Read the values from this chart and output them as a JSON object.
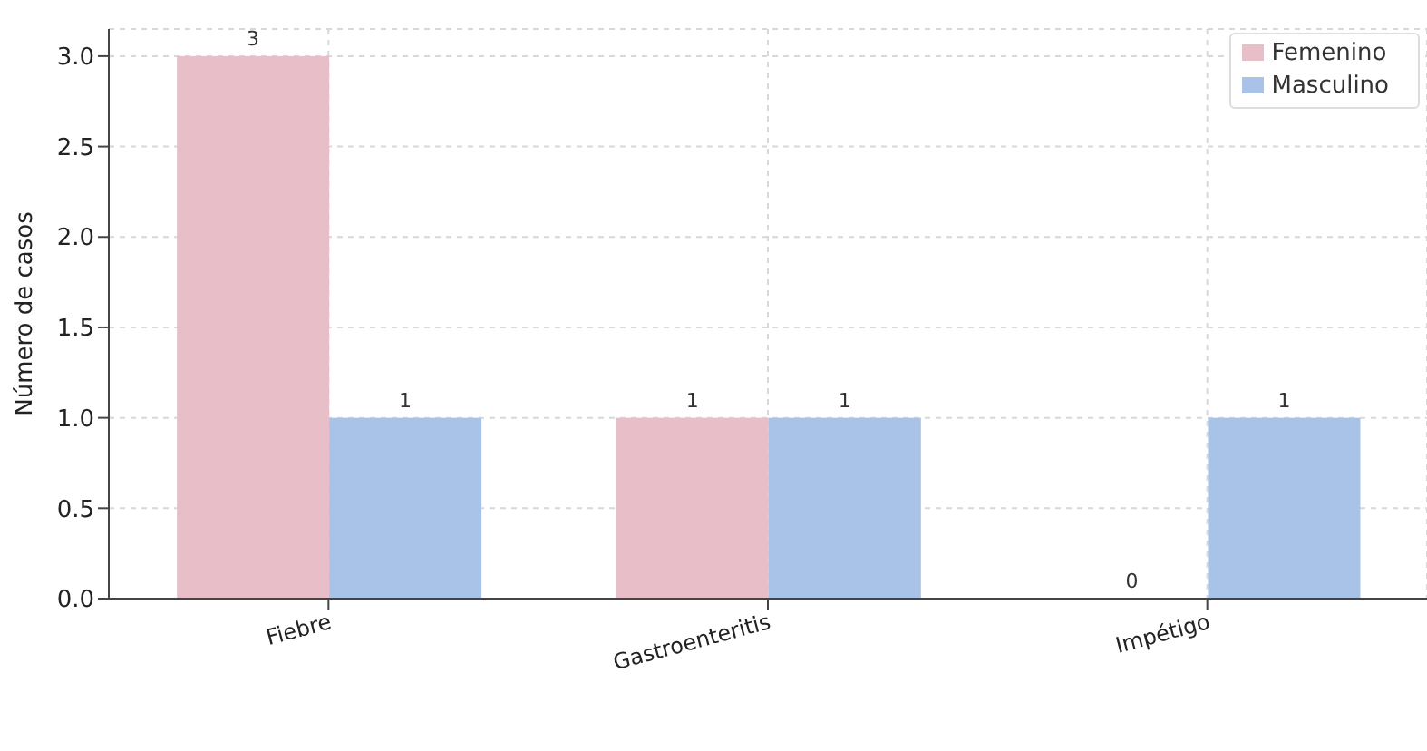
{
  "chart_data": {
    "type": "bar",
    "ylabel": "Número de casos",
    "categories": [
      "Fiebre",
      "Gastroenteritis",
      "Impétigo"
    ],
    "series": [
      {
        "name": "Femenino",
        "color": "#e8bfc8",
        "values": [
          3,
          1,
          0
        ]
      },
      {
        "name": "Masculino",
        "color": "#a8c2e8",
        "values": [
          1,
          1,
          1
        ]
      }
    ],
    "ylim": [
      0,
      3.15
    ],
    "yticks": [
      {
        "value": 0,
        "label": "0.0"
      },
      0.5,
      {
        "value": 1,
        "label": "1.0"
      },
      1.5,
      {
        "value": 2,
        "label": "2.0"
      },
      2.5,
      {
        "value": 3,
        "label": "3.0"
      }
    ],
    "data_labels": true,
    "grid": true,
    "legend": "top right"
  }
}
